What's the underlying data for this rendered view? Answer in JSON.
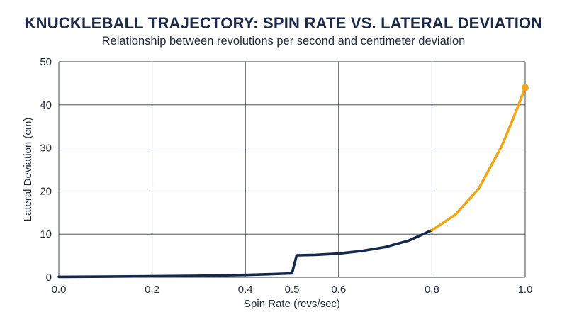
{
  "chart_data": {
    "type": "line",
    "title": "KNUCKLEBALL TRAJECTORY: SPIN RATE VS. LATERAL DEVIATION",
    "subtitle": "Relationship between revolutions per second and centimeter deviation",
    "xlabel": "Spin Rate (revs/sec)",
    "ylabel": "Lateral Deviation (cm)",
    "xlim": [
      0,
      1.0
    ],
    "ylim": [
      0,
      50
    ],
    "x_ticks": [
      0.0,
      0.2,
      0.4,
      0.5,
      0.6,
      0.8,
      1.0
    ],
    "x_tick_labels": [
      "0.0",
      "0.2",
      "0.4",
      "0.5",
      "0.6",
      "0.8",
      "1.0"
    ],
    "y_ticks": [
      0,
      10,
      20,
      30,
      40,
      50
    ],
    "y_tick_labels": [
      "0",
      "10",
      "20",
      "30",
      "40",
      "50"
    ],
    "grid": true,
    "legend": "none",
    "series": [
      {
        "color": "#13284a",
        "points": [
          [
            0.0,
            0.1
          ],
          [
            0.1,
            0.15
          ],
          [
            0.2,
            0.25
          ],
          [
            0.3,
            0.35
          ],
          [
            0.4,
            0.55
          ],
          [
            0.45,
            0.7
          ],
          [
            0.5,
            0.9
          ],
          [
            0.51,
            5.1
          ],
          [
            0.55,
            5.2
          ],
          [
            0.6,
            5.5
          ],
          [
            0.65,
            6.1
          ],
          [
            0.7,
            7.0
          ],
          [
            0.75,
            8.5
          ],
          [
            0.8,
            10.9
          ]
        ]
      },
      {
        "color": "#f2a516",
        "points": [
          [
            0.8,
            10.9
          ],
          [
            0.85,
            14.5
          ],
          [
            0.9,
            20.5
          ],
          [
            0.95,
            30.5
          ],
          [
            0.975,
            37.0
          ],
          [
            1.0,
            44.0
          ]
        ],
        "endpoint_marker": true
      }
    ]
  }
}
